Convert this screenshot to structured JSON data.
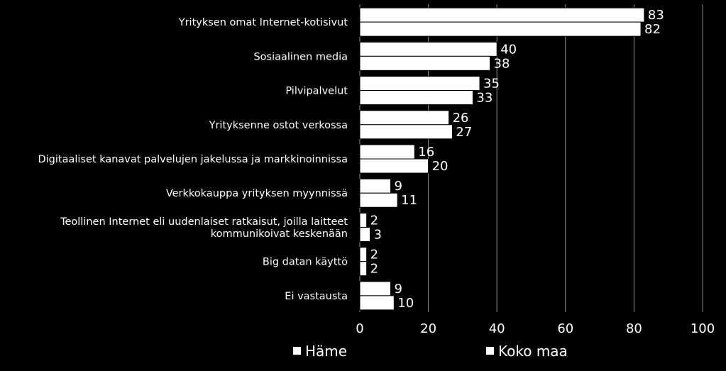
{
  "chart_data": {
    "type": "bar",
    "orientation": "horizontal",
    "categories": [
      [
        "Yrityksen omat Internet-kotisivut"
      ],
      [
        "Sosiaalinen media"
      ],
      [
        "Pilvipalvelut"
      ],
      [
        "Yrityksenne ostot verkossa"
      ],
      [
        "Digitaaliset kanavat palvelujen jakelussa ja markkinoinnissa"
      ],
      [
        "Verkkokauppa yrityksen myynnissä"
      ],
      [
        "Teollinen Internet eli uudenlaiset ratkaisut, joilla laitteet",
        "kommunikoivat keskenään"
      ],
      [
        "Big datan käyttö"
      ],
      [
        "Ei vastausta"
      ]
    ],
    "series": [
      {
        "name": "Häme",
        "values": [
          83,
          40,
          35,
          26,
          16,
          9,
          2,
          2,
          9
        ]
      },
      {
        "name": "Koko maa",
        "values": [
          82,
          38,
          33,
          27,
          20,
          11,
          3,
          2,
          10
        ]
      }
    ],
    "xlim": [
      0,
      100
    ],
    "xticks": [
      0,
      20,
      40,
      60,
      80,
      100
    ],
    "grid": true,
    "legend_position": "bottom",
    "colors": {
      "background": "#000000",
      "bar_fill": "#ffffff",
      "bar_stroke": "#000000",
      "grid": "#8c8c8c",
      "text": "#ffffff"
    }
  }
}
